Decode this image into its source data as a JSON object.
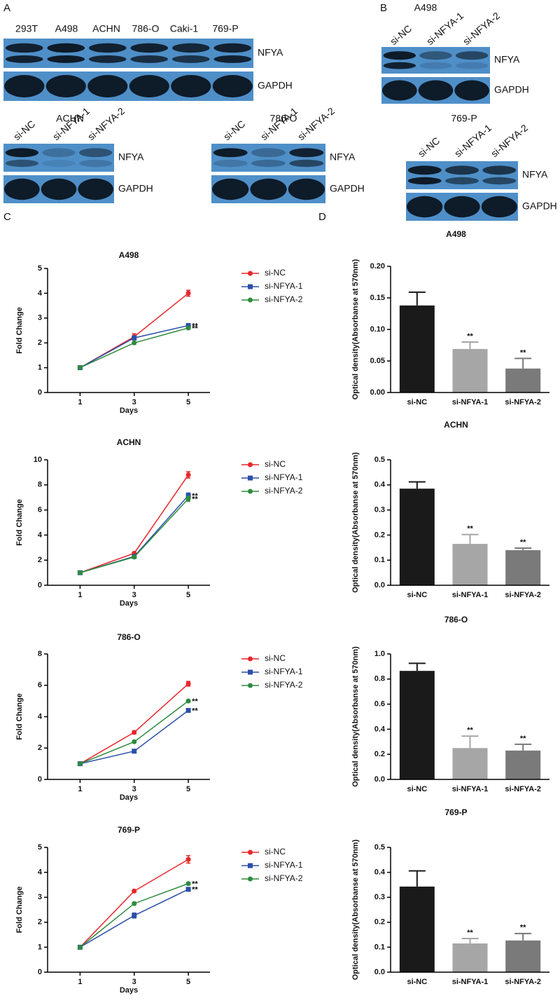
{
  "panel_labels": [
    "A",
    "B",
    "C",
    "D"
  ],
  "blots": [
    {
      "lanes": [
        "293T",
        "A498",
        "ACHN",
        "786-O",
        "Caki-1",
        "769-P"
      ],
      "rows": [
        "NFYA",
        "GAPDH"
      ]
    },
    {
      "title": "A498",
      "lanes": [
        "si-NC",
        "si-NFYA-1",
        "si-NFYA-2"
      ],
      "rows": [
        "NFYA",
        "GAPDH"
      ]
    },
    {
      "title": "ACHN",
      "lanes": [
        "si-NC",
        "si-NFYA-1",
        "si-NFYA-2"
      ],
      "rows": [
        "NFYA",
        "GAPDH"
      ]
    },
    {
      "title": "786-O",
      "lanes": [
        "si-NC",
        "si-NFYA-1",
        "si-NFYA-2"
      ],
      "rows": [
        "NFYA",
        "GAPDH"
      ]
    },
    {
      "title": "769-P",
      "lanes": [
        "si-NC",
        "si-NFYA-1",
        "si-NFYA-2"
      ],
      "rows": [
        "NFYA",
        "GAPDH"
      ]
    }
  ],
  "chart_data": [
    {
      "type": "line",
      "title": "A498",
      "xlabel": "Days",
      "ylabel": "Fold Change",
      "x": [
        1,
        3,
        5
      ],
      "xlim": [
        -0.2,
        5.8
      ],
      "xticks": [
        1,
        3,
        5
      ],
      "ylim": [
        0,
        5
      ],
      "yticks": [
        0,
        1,
        2,
        3,
        4,
        5
      ],
      "series": [
        {
          "name": "si-NC",
          "color": "#e8262a",
          "marker": "circle",
          "values": [
            1,
            2.25,
            4.0
          ],
          "errors": [
            0.03,
            0.12,
            0.12
          ]
        },
        {
          "name": "si-NFYA-1",
          "color": "#2b4fa8",
          "marker": "square",
          "values": [
            1,
            2.2,
            2.7
          ],
          "errors": [
            0.02,
            0.08,
            0.06
          ],
          "significance": "**"
        },
        {
          "name": "si-NFYA-2",
          "color": "#2e8b3e",
          "marker": "circle",
          "values": [
            1,
            2.0,
            2.6
          ],
          "errors": [
            0.02,
            0.05,
            0.05
          ],
          "significance": "**"
        }
      ]
    },
    {
      "type": "line",
      "title": "ACHN",
      "xlabel": "Days",
      "ylabel": "Fold Change",
      "x": [
        1,
        3,
        5
      ],
      "xlim": [
        -0.2,
        5.8
      ],
      "xticks": [
        1,
        3,
        5
      ],
      "ylim": [
        0,
        10
      ],
      "yticks": [
        0,
        2,
        4,
        6,
        8,
        10
      ],
      "series": [
        {
          "name": "si-NC",
          "color": "#e8262a",
          "marker": "circle",
          "values": [
            1,
            2.55,
            8.8
          ],
          "errors": [
            0.05,
            0.1,
            0.25
          ]
        },
        {
          "name": "si-NFYA-1",
          "color": "#2b4fa8",
          "marker": "square",
          "values": [
            1,
            2.3,
            7.15
          ],
          "errors": [
            0.05,
            0.1,
            0.2
          ],
          "significance": "**"
        },
        {
          "name": "si-NFYA-2",
          "color": "#2e8b3e",
          "marker": "circle",
          "values": [
            1,
            2.25,
            6.9
          ],
          "errors": [
            0.05,
            0.1,
            0.2
          ],
          "significance": "**"
        }
      ]
    },
    {
      "type": "line",
      "title": "786-O",
      "xlabel": "Days",
      "ylabel": "Fold Change",
      "x": [
        1,
        3,
        5
      ],
      "xlim": [
        -0.2,
        5.8
      ],
      "xticks": [
        1,
        3,
        5
      ],
      "ylim": [
        0,
        8
      ],
      "yticks": [
        0,
        2,
        4,
        6,
        8
      ],
      "series": [
        {
          "name": "si-NC",
          "color": "#e8262a",
          "marker": "circle",
          "values": [
            1,
            3.0,
            6.1
          ],
          "errors": [
            0.05,
            0.1,
            0.15
          ]
        },
        {
          "name": "si-NFYA-1",
          "color": "#2b4fa8",
          "marker": "square",
          "values": [
            1,
            1.8,
            4.4
          ],
          "errors": [
            0.05,
            0.1,
            0.08
          ],
          "significance": "**"
        },
        {
          "name": "si-NFYA-2",
          "color": "#2e8b3e",
          "marker": "circle",
          "values": [
            1,
            2.4,
            5.0
          ],
          "errors": [
            0.05,
            0.05,
            0.05
          ],
          "significance": "**"
        }
      ]
    },
    {
      "type": "line",
      "title": "769-P",
      "xlabel": "Days",
      "ylabel": "Fold Change",
      "x": [
        1,
        3,
        5
      ],
      "xlim": [
        -0.2,
        5.8
      ],
      "xticks": [
        1,
        3,
        5
      ],
      "ylim": [
        0,
        5
      ],
      "yticks": [
        0,
        1,
        2,
        3,
        4,
        5
      ],
      "series": [
        {
          "name": "si-NC",
          "color": "#e8262a",
          "marker": "circle",
          "values": [
            1,
            3.25,
            4.52
          ],
          "errors": [
            0.03,
            0.05,
            0.15
          ]
        },
        {
          "name": "si-NFYA-1",
          "color": "#2b4fa8",
          "marker": "square",
          "values": [
            1,
            2.27,
            3.32
          ],
          "errors": [
            0.03,
            0.1,
            0.07
          ],
          "significance": "**"
        },
        {
          "name": "si-NFYA-2",
          "color": "#2e8b3e",
          "marker": "circle",
          "values": [
            1,
            2.75,
            3.55
          ],
          "errors": [
            0.03,
            0.05,
            0.05
          ],
          "significance": "**"
        }
      ]
    },
    {
      "type": "bar",
      "title": "A498",
      "ylabel": "Optical density(Absorbanse at 570nm)",
      "categories": [
        "si-NC",
        "si-NFYA-1",
        "si-NFYA-2"
      ],
      "values": [
        0.138,
        0.069,
        0.038
      ],
      "errors": [
        0.021,
        0.011,
        0.016
      ],
      "colors": [
        "#1a1a1a",
        "#a6a6a6",
        "#7a7a7a"
      ],
      "significance": [
        null,
        "**",
        "**"
      ],
      "ylim": [
        0,
        0.2
      ],
      "yticks": [
        {
          "value": 0,
          "label": "0.00"
        },
        0.05,
        {
          "value": 0.1,
          "label": "0.10"
        },
        0.15,
        {
          "value": 0.2,
          "label": "0.20"
        }
      ]
    },
    {
      "type": "bar",
      "title": "ACHN",
      "ylabel": "Optical density(Absorbanse at 570nm)",
      "categories": [
        "si-NC",
        "si-NFYA-1",
        "si-NFYA-2"
      ],
      "values": [
        0.385,
        0.165,
        0.14
      ],
      "errors": [
        0.027,
        0.037,
        0.008
      ],
      "colors": [
        "#1a1a1a",
        "#a6a6a6",
        "#7a7a7a"
      ],
      "significance": [
        null,
        "**",
        "**"
      ],
      "ylim": [
        0,
        0.5
      ],
      "yticks": [
        {
          "value": 0,
          "label": "0.0"
        },
        0.1,
        0.2,
        0.3,
        0.4,
        0.5
      ]
    },
    {
      "type": "bar",
      "title": "786-O",
      "ylabel": "Optical density(Absorbanse at 570nm)",
      "categories": [
        "si-NC",
        "si-NFYA-1",
        "si-NFYA-2"
      ],
      "values": [
        0.865,
        0.25,
        0.23
      ],
      "errors": [
        0.06,
        0.095,
        0.05
      ],
      "colors": [
        "#1a1a1a",
        "#a6a6a6",
        "#7a7a7a"
      ],
      "significance": [
        null,
        "**",
        "**"
      ],
      "ylim": [
        0,
        1
      ],
      "yticks": [
        {
          "value": 0,
          "label": "0.0"
        },
        0.2,
        0.4,
        0.6,
        0.8,
        {
          "value": 1,
          "label": "1.0"
        }
      ]
    },
    {
      "type": "bar",
      "title": "769-P",
      "ylabel": "Optical density(Absorbanse at 570nm)",
      "categories": [
        "si-NC",
        "si-NFYA-1",
        "si-NFYA-2"
      ],
      "values": [
        0.343,
        0.115,
        0.127
      ],
      "errors": [
        0.063,
        0.02,
        0.028
      ],
      "colors": [
        "#1a1a1a",
        "#a6a6a6",
        "#7a7a7a"
      ],
      "significance": [
        null,
        "**",
        "**"
      ],
      "ylim": [
        0,
        0.5
      ],
      "yticks": [
        {
          "value": 0,
          "label": "0.0"
        },
        0.1,
        0.2,
        0.3,
        0.4,
        0.5
      ]
    }
  ]
}
